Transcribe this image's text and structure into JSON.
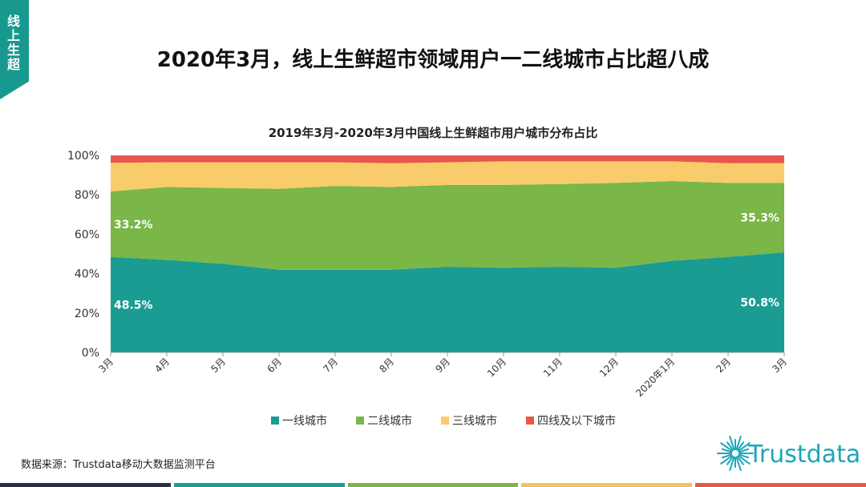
{
  "side_tab": {
    "label": "线上生超"
  },
  "page_title": "2020年3月，线上生鲜超市领域用户一二线城市占比超八成",
  "source": "数据来源：Trustdata移动大数据监测平台",
  "logo": {
    "text": "Trustdata",
    "color": "#1ba7ba"
  },
  "bottom_bar_colors": [
    "#2b2d42",
    "#1a9c93",
    "#7ab648",
    "#f5c15e",
    "#e8564c"
  ],
  "chart_data": {
    "type": "area",
    "stacked": true,
    "title": "2019年3月-2020年3月中国线上生鲜超市用户城市分布占比",
    "categories": [
      "3月",
      "4月",
      "5月",
      "6月",
      "7月",
      "8月",
      "9月",
      "10月",
      "11月",
      "12月",
      "2020年1月",
      "2月",
      "3月"
    ],
    "y_ticks": [
      "0%",
      "20%",
      "40%",
      "60%",
      "80%",
      "100%"
    ],
    "ylim": [
      0,
      100
    ],
    "legend_position": "bottom",
    "series": [
      {
        "name": "一线城市",
        "color": "#1a9c93",
        "values": [
          48.5,
          47,
          45,
          42,
          42,
          42,
          43.5,
          43,
          43.5,
          43,
          46.5,
          48.5,
          50.8
        ]
      },
      {
        "name": "二线城市",
        "color": "#7ab648",
        "values": [
          33.2,
          37,
          38.5,
          41,
          42.5,
          42,
          41.5,
          42,
          42,
          43,
          40.5,
          37.5,
          35.3
        ]
      },
      {
        "name": "三线城市",
        "color": "#f8cc6a",
        "values": [
          14.5,
          12.5,
          13,
          13.5,
          12,
          12,
          11.5,
          12,
          11.5,
          11,
          10,
          10,
          10
        ]
      },
      {
        "name": "四线及以下城市",
        "color": "#e8564c",
        "values": [
          3.8,
          3.5,
          3.5,
          3.5,
          3.5,
          4,
          3.5,
          3,
          3,
          3,
          3,
          4,
          3.9
        ]
      }
    ],
    "data_labels": [
      {
        "text": "48.5%",
        "series": 0,
        "index": 0
      },
      {
        "text": "33.2%",
        "series": 1,
        "index": 0
      },
      {
        "text": "50.8%",
        "series": 0,
        "index": 12
      },
      {
        "text": "35.3%",
        "series": 1,
        "index": 12
      }
    ]
  }
}
